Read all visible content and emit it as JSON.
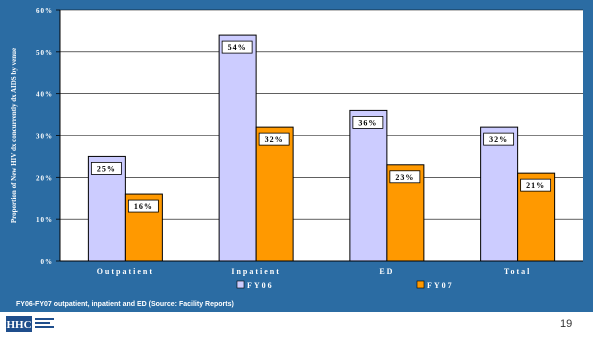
{
  "chart_data": {
    "type": "bar",
    "categories": [
      "Outpatient",
      "Inpatient",
      "ED",
      "Total"
    ],
    "series": [
      {
        "name": "FY06",
        "values": [
          25,
          54,
          36,
          32
        ],
        "labels": [
          "25%",
          "54%",
          "36%",
          "32%"
        ],
        "color": "#ccccff"
      },
      {
        "name": "FY07",
        "values": [
          16,
          32,
          23,
          21
        ],
        "labels": [
          "16%",
          "32%",
          "23%",
          "21%"
        ],
        "color": "#ff9900"
      }
    ],
    "ylabel": "Proportion of New HIV dx concurrently dx AIDS by venue",
    "yticks": [
      "0%",
      "10%",
      "20%",
      "30%",
      "40%",
      "50%",
      "60%"
    ],
    "ylim": [
      0,
      60
    ],
    "grid": true,
    "legend": "bottom"
  },
  "source_note": "FY06-FY07 outpatient, inpatient and ED (Source: Facility Reports)",
  "logo_text": "HHC",
  "page_number": "19",
  "colors": {
    "background": "#2b6ca3",
    "plot": "#ffffff",
    "fy06": "#ccccff",
    "fy07": "#ff9900"
  }
}
